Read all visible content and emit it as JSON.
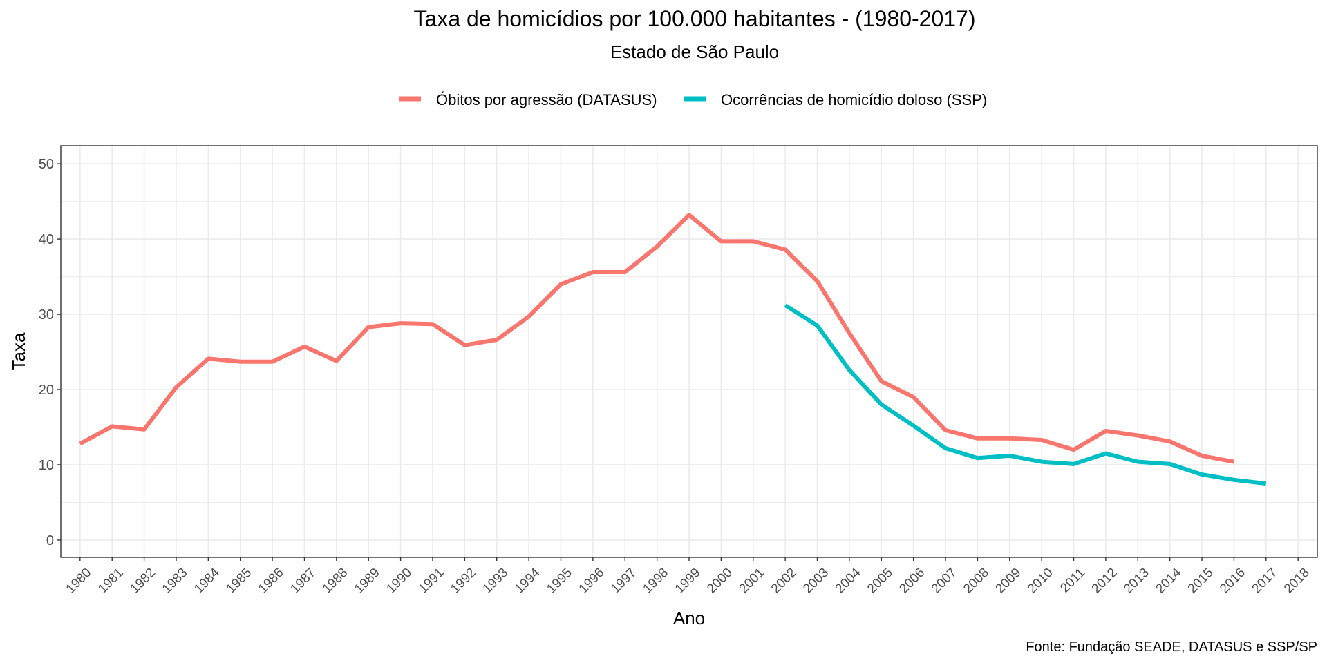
{
  "chart_data": {
    "type": "line",
    "title": "Taxa de homicídios por 100.000 habitantes - (1980-2017)",
    "subtitle": "Estado de São Paulo",
    "xlabel": "Ano",
    "ylabel": "Taxa",
    "caption": "Fonte: Fundação SEADE, DATASUS e SSP/SP",
    "xlim": [
      1979.4,
      2018.6
    ],
    "ylim": [
      -2.3,
      52.4
    ],
    "x_ticks": [
      1980,
      1981,
      1982,
      1983,
      1984,
      1985,
      1986,
      1987,
      1988,
      1989,
      1990,
      1991,
      1992,
      1993,
      1994,
      1995,
      1996,
      1997,
      1998,
      1999,
      2000,
      2001,
      2002,
      2003,
      2004,
      2005,
      2006,
      2007,
      2008,
      2009,
      2010,
      2011,
      2012,
      2013,
      2014,
      2015,
      2016,
      2017,
      2018
    ],
    "y_ticks": [
      0,
      10,
      20,
      30,
      40,
      50
    ],
    "y_minor_ticks": [
      5,
      15,
      25,
      35,
      45
    ],
    "grid": true,
    "legend_position": "top",
    "series": [
      {
        "name": "Óbitos por agressão (DATASUS)",
        "color": "#F8766D",
        "x": [
          1980,
          1981,
          1982,
          1983,
          1984,
          1985,
          1986,
          1987,
          1988,
          1989,
          1990,
          1991,
          1992,
          1993,
          1994,
          1995,
          1996,
          1997,
          1998,
          1999,
          2000,
          2001,
          2002,
          2003,
          2004,
          2005,
          2006,
          2007,
          2008,
          2009,
          2010,
          2011,
          2012,
          2013,
          2014,
          2015,
          2016
        ],
        "values": [
          12.8,
          15.1,
          14.7,
          20.3,
          24.1,
          23.7,
          23.7,
          25.7,
          23.8,
          28.3,
          28.8,
          28.7,
          25.9,
          26.6,
          29.7,
          34.0,
          35.6,
          35.6,
          39.0,
          43.2,
          39.7,
          39.7,
          38.6,
          34.4,
          27.5,
          21.1,
          19.0,
          14.6,
          13.5,
          13.5,
          13.3,
          12.0,
          14.5,
          13.9,
          13.1,
          11.2,
          10.4
        ]
      },
      {
        "name": "Ocorrências de homicídio doloso (SSP)",
        "color": "#00BFC4",
        "x": [
          2002,
          2003,
          2004,
          2005,
          2006,
          2007,
          2008,
          2009,
          2010,
          2011,
          2012,
          2013,
          2014,
          2015,
          2016,
          2017
        ],
        "values": [
          31.2,
          28.5,
          22.6,
          18.0,
          15.2,
          12.2,
          10.9,
          11.2,
          10.4,
          10.1,
          11.5,
          10.4,
          10.1,
          8.7,
          8.0,
          7.5
        ]
      }
    ]
  }
}
